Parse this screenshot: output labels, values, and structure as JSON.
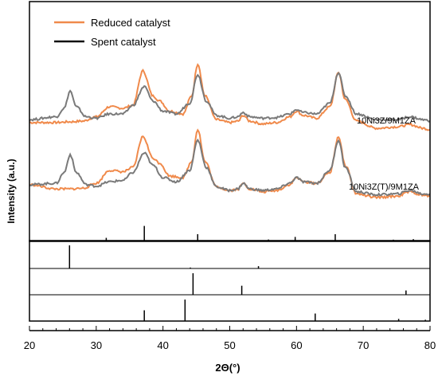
{
  "chart_data": {
    "type": "line",
    "xlabel": "2Θ(°)",
    "ylabel": "Intensity (a.u.)",
    "xlim": [
      20,
      80
    ],
    "xticks": [
      20,
      30,
      40,
      50,
      60,
      70,
      80
    ],
    "legend": {
      "placement": "top-left",
      "entries": [
        {
          "name": "Reduced catalyst",
          "color": "#f08a4b"
        },
        {
          "name": "Spent catalyst",
          "color": "#111111"
        }
      ]
    },
    "colors": {
      "reduced": "#f08a4b",
      "spent": "#7a7a7a",
      "reference_lines": "#000000"
    },
    "sample_labels": [
      "10Ni3Z/9M1ZA",
      "10Ni3Z(T)/9M1ZA"
    ],
    "series": [
      {
        "name": "Reduced catalyst",
        "sample": "10Ni3Z/9M1ZA",
        "points": [
          [
            20,
            0.18
          ],
          [
            24,
            0.18
          ],
          [
            26,
            0.19
          ],
          [
            28,
            0.2
          ],
          [
            30,
            0.26
          ],
          [
            32,
            0.4
          ],
          [
            34,
            0.38
          ],
          [
            35.5,
            0.42
          ],
          [
            37,
            0.9
          ],
          [
            38.5,
            0.55
          ],
          [
            39.5,
            0.48
          ],
          [
            41,
            0.34
          ],
          [
            43,
            0.3
          ],
          [
            44.3,
            0.55
          ],
          [
            45.2,
            1.0
          ],
          [
            46.3,
            0.55
          ],
          [
            48,
            0.22
          ],
          [
            50,
            0.18
          ],
          [
            51.3,
            0.2
          ],
          [
            52,
            0.28
          ],
          [
            53,
            0.2
          ],
          [
            55,
            0.16
          ],
          [
            57,
            0.18
          ],
          [
            59,
            0.26
          ],
          [
            60,
            0.34
          ],
          [
            61,
            0.28
          ],
          [
            63,
            0.24
          ],
          [
            65,
            0.4
          ],
          [
            66.3,
            0.88
          ],
          [
            67.3,
            0.5
          ],
          [
            69,
            0.2
          ],
          [
            72,
            0.1
          ],
          [
            75,
            0.12
          ],
          [
            77,
            0.15
          ],
          [
            79,
            0.1
          ],
          [
            80,
            0.08
          ]
        ]
      },
      {
        "name": "Spent catalyst",
        "sample": "10Ni3Z/9M1ZA",
        "points": [
          [
            20,
            0.22
          ],
          [
            24,
            0.26
          ],
          [
            25.2,
            0.38
          ],
          [
            26.1,
            0.62
          ],
          [
            27,
            0.4
          ],
          [
            28.5,
            0.26
          ],
          [
            30,
            0.24
          ],
          [
            32,
            0.3
          ],
          [
            34,
            0.3
          ],
          [
            35.5,
            0.42
          ],
          [
            37.2,
            0.68
          ],
          [
            38.5,
            0.48
          ],
          [
            40,
            0.34
          ],
          [
            42,
            0.3
          ],
          [
            44,
            0.45
          ],
          [
            45.2,
            0.85
          ],
          [
            46.5,
            0.48
          ],
          [
            48,
            0.28
          ],
          [
            50,
            0.24
          ],
          [
            51.2,
            0.26
          ],
          [
            52,
            0.32
          ],
          [
            53,
            0.26
          ],
          [
            55,
            0.24
          ],
          [
            57,
            0.25
          ],
          [
            59,
            0.3
          ],
          [
            60,
            0.36
          ],
          [
            61,
            0.32
          ],
          [
            63,
            0.3
          ],
          [
            65,
            0.45
          ],
          [
            66.3,
            0.88
          ],
          [
            67.3,
            0.55
          ],
          [
            69,
            0.3
          ],
          [
            72,
            0.22
          ],
          [
            75,
            0.22
          ],
          [
            77,
            0.26
          ],
          [
            79,
            0.22
          ],
          [
            80,
            0.2
          ]
        ]
      },
      {
        "name": "Reduced catalyst",
        "sample": "10Ni3Z(T)/9M1ZA",
        "points": [
          [
            20,
            0.18
          ],
          [
            24,
            0.12
          ],
          [
            26,
            0.12
          ],
          [
            28,
            0.13
          ],
          [
            30,
            0.2
          ],
          [
            32,
            0.38
          ],
          [
            34,
            0.36
          ],
          [
            35.5,
            0.42
          ],
          [
            37,
            0.85
          ],
          [
            38.5,
            0.55
          ],
          [
            39.5,
            0.48
          ],
          [
            41,
            0.3
          ],
          [
            43,
            0.28
          ],
          [
            44.3,
            0.5
          ],
          [
            45.2,
            0.95
          ],
          [
            46.3,
            0.5
          ],
          [
            48,
            0.15
          ],
          [
            50,
            0.1
          ],
          [
            51.3,
            0.12
          ],
          [
            52,
            0.2
          ],
          [
            53,
            0.12
          ],
          [
            55,
            0.08
          ],
          [
            57,
            0.1
          ],
          [
            59,
            0.18
          ],
          [
            60,
            0.28
          ],
          [
            61,
            0.22
          ],
          [
            63,
            0.2
          ],
          [
            65,
            0.35
          ],
          [
            66.3,
            0.85
          ],
          [
            67.3,
            0.45
          ],
          [
            69,
            0.05
          ],
          [
            72,
            0.0
          ],
          [
            75,
            0.02
          ],
          [
            77,
            0.08
          ],
          [
            79,
            0.03
          ],
          [
            80,
            0.02
          ]
        ]
      },
      {
        "name": "Spent catalyst",
        "sample": "10Ni3Z(T)/9M1ZA",
        "points": [
          [
            20,
            0.18
          ],
          [
            24,
            0.2
          ],
          [
            25.2,
            0.35
          ],
          [
            26.1,
            0.6
          ],
          [
            27,
            0.35
          ],
          [
            28.5,
            0.18
          ],
          [
            30,
            0.16
          ],
          [
            32,
            0.22
          ],
          [
            34,
            0.24
          ],
          [
            35.5,
            0.35
          ],
          [
            37.2,
            0.62
          ],
          [
            38.5,
            0.45
          ],
          [
            40,
            0.28
          ],
          [
            42,
            0.22
          ],
          [
            44,
            0.38
          ],
          [
            45.2,
            0.8
          ],
          [
            46.5,
            0.42
          ],
          [
            48,
            0.15
          ],
          [
            50,
            0.1
          ],
          [
            51.2,
            0.12
          ],
          [
            52,
            0.2
          ],
          [
            53,
            0.12
          ],
          [
            55,
            0.1
          ],
          [
            57,
            0.12
          ],
          [
            59,
            0.2
          ],
          [
            60,
            0.28
          ],
          [
            61,
            0.22
          ],
          [
            63,
            0.2
          ],
          [
            65,
            0.38
          ],
          [
            66.3,
            0.8
          ],
          [
            67.3,
            0.42
          ],
          [
            69,
            0.08
          ],
          [
            72,
            0.04
          ],
          [
            75,
            0.05
          ],
          [
            77,
            0.1
          ],
          [
            79,
            0.05
          ],
          [
            80,
            0.05
          ]
        ]
      }
    ],
    "reference_panels": [
      {
        "lines": [
          [
            31.5,
            0.15
          ],
          [
            37.2,
            0.8
          ],
          [
            45.2,
            0.35
          ],
          [
            55.8,
            0.06
          ],
          [
            59.8,
            0.2
          ],
          [
            65.8,
            0.35
          ],
          [
            74.5,
            0.05
          ],
          [
            77.5,
            0.08
          ]
        ]
      },
      {
        "lines": [
          [
            26,
            1.0
          ],
          [
            44.1,
            0.04
          ],
          [
            54.3,
            0.1
          ]
        ]
      },
      {
        "lines": [
          [
            44.5,
            1.0
          ],
          [
            51.8,
            0.42
          ],
          [
            76.4,
            0.2
          ]
        ]
      },
      {
        "lines": [
          [
            37.2,
            0.5
          ],
          [
            43.3,
            1.0
          ],
          [
            62.8,
            0.35
          ],
          [
            75.3,
            0.1
          ],
          [
            79.3,
            0.06
          ]
        ]
      }
    ]
  }
}
